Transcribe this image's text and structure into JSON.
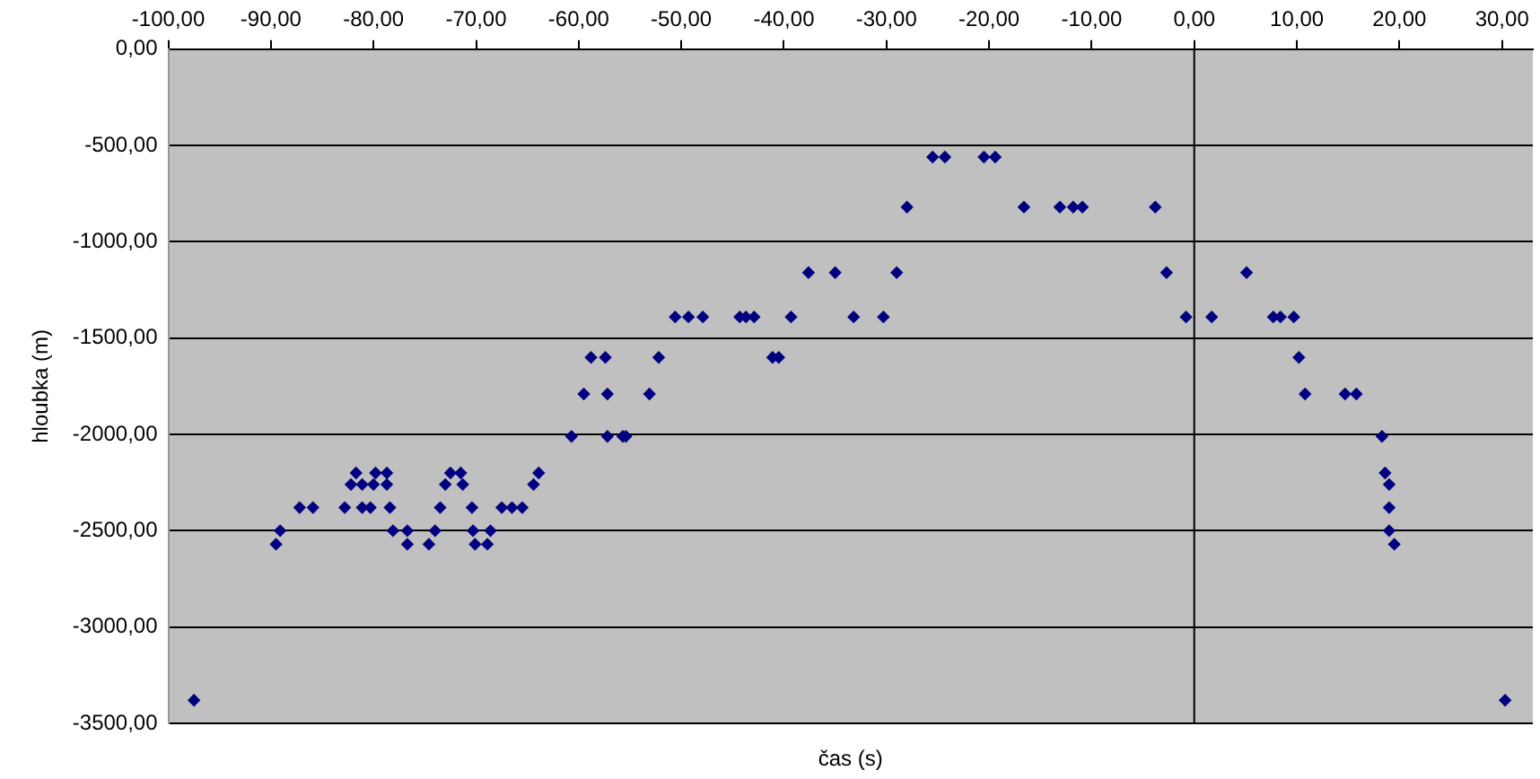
{
  "chart_data": {
    "type": "scatter",
    "xlabel": "čas (s)",
    "ylabel": "hloubka (m)",
    "xlim": [
      -100,
      33
    ],
    "xticks": [
      {
        "value": -100,
        "label": "-100,00"
      },
      {
        "value": -90,
        "label": "-90,00"
      },
      {
        "value": -80,
        "label": "-80,00"
      },
      {
        "value": -70,
        "label": "-70,00"
      },
      {
        "value": -60,
        "label": "-60,00"
      },
      {
        "value": -50,
        "label": "-50,00"
      },
      {
        "value": -40,
        "label": "-40,00"
      },
      {
        "value": -30,
        "label": "-30,00"
      },
      {
        "value": -20,
        "label": "-20,00"
      },
      {
        "value": -10,
        "label": "-10,00"
      },
      {
        "value": 0,
        "label": "0,00"
      },
      {
        "value": 10,
        "label": "10,00"
      },
      {
        "value": 20,
        "label": "20,00"
      },
      {
        "value": 30,
        "label": "30,00"
      }
    ],
    "ylim": [
      -3500,
      0
    ],
    "yticks": [
      {
        "value": 0,
        "label": "0,00"
      },
      {
        "value": -500,
        "label": "-500,00"
      },
      {
        "value": -1000,
        "label": "-1000,00"
      },
      {
        "value": -1500,
        "label": "-1500,00"
      },
      {
        "value": -2000,
        "label": "-2000,00"
      },
      {
        "value": -2500,
        "label": "-2500,00"
      },
      {
        "value": -3000,
        "label": "-3000,00"
      },
      {
        "value": -3500,
        "label": "-3500,00"
      }
    ],
    "grid": "y",
    "marker": "diamond",
    "legend": false,
    "ref_lines": [
      {
        "axis": "x",
        "value": 0,
        "color": "#000000"
      }
    ],
    "series": [
      {
        "color": "#000080",
        "x": [
          -97.5,
          -89.5,
          -89.1,
          -87.2,
          -85.9,
          -82.8,
          -82.2,
          -81.7,
          -81.1,
          -81.1,
          -80.3,
          -80.0,
          -79.8,
          -78.7,
          -78.7,
          -78.4,
          -78.1,
          -76.7,
          -76.7,
          -74.6,
          -74.0,
          -73.5,
          -73.0,
          -72.5,
          -71.5,
          -71.3,
          -70.4,
          -70.3,
          -70.1,
          -68.9,
          -68.6,
          -67.5,
          -66.5,
          -65.5,
          -64.4,
          -63.9,
          -60.7,
          -59.5,
          -58.8,
          -57.4,
          -57.2,
          -57.2,
          -55.7,
          -55.4,
          -53.1,
          -52.2,
          -50.6,
          -49.3,
          -47.9,
          -44.3,
          -43.7,
          -42.9,
          -41.1,
          -40.5,
          -39.3,
          -37.6,
          -35.0,
          -33.2,
          -30.3,
          -29.0,
          -28.0,
          -25.5,
          -24.3,
          -20.5,
          -19.4,
          -16.6,
          -13.1,
          -11.8,
          -10.9,
          -3.8,
          -2.7,
          -0.8,
          1.7,
          5.1,
          7.7,
          8.4,
          9.7,
          10.2,
          10.8,
          14.7,
          15.8,
          18.3,
          18.6,
          19.0,
          19.0,
          19.0,
          19.5,
          30.3
        ],
        "values": [
          -3380,
          -2570,
          -2500,
          -2380,
          -2380,
          -2380,
          -2260,
          -2200,
          -2260,
          -2380,
          -2380,
          -2260,
          -2200,
          -2200,
          -2260,
          -2380,
          -2500,
          -2500,
          -2570,
          -2570,
          -2500,
          -2380,
          -2260,
          -2200,
          -2200,
          -2260,
          -2380,
          -2500,
          -2570,
          -2570,
          -2500,
          -2380,
          -2380,
          -2380,
          -2260,
          -2200,
          -2010,
          -1790,
          -1600,
          -1600,
          -1790,
          -2010,
          -2010,
          -2010,
          -1790,
          -1600,
          -1390,
          -1390,
          -1390,
          -1390,
          -1390,
          -1390,
          -1600,
          -1600,
          -1390,
          -1160,
          -1160,
          -1390,
          -1390,
          -1160,
          -820,
          -560,
          -560,
          -560,
          -560,
          -820,
          -820,
          -820,
          -820,
          -820,
          -1160,
          -1390,
          -1390,
          -1160,
          -1390,
          -1390,
          -1390,
          -1600,
          -1790,
          -1790,
          -1790,
          -2010,
          -2200,
          -2260,
          -2380,
          -2500,
          -2570,
          -3380
        ]
      }
    ]
  }
}
